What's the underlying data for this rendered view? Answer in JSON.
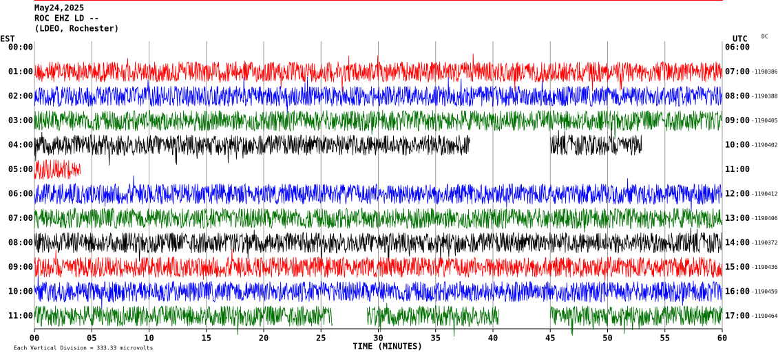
{
  "header": {
    "date": "May24,2025",
    "station": "ROC EHZ LD --",
    "network": "(LDEO, Rochester)",
    "left_zone": "EST",
    "right_zone": "UTC",
    "mode": "DC"
  },
  "axis": {
    "xlim": [
      0,
      60
    ],
    "xticks": [
      {
        "value": 0,
        "label": "00"
      },
      {
        "value": 5,
        "label": "05"
      },
      10,
      15,
      20,
      25,
      30,
      35,
      40,
      45,
      50,
      55,
      60
    ],
    "xlabel": "TIME (MINUTES)",
    "scale_note": "Each Vertical Division =  333.33 microvolts"
  },
  "rows": [
    {
      "est": "00:00",
      "utc": "06:00",
      "count": null,
      "color": null,
      "segments": []
    },
    {
      "est": "01:00",
      "utc": "07:00",
      "count": "-1190386",
      "color": "#ff0000",
      "segments": [
        [
          0,
          60
        ]
      ]
    },
    {
      "est": "02:00",
      "utc": "08:00",
      "count": "-1190388",
      "color": "#0000ff",
      "segments": [
        [
          0,
          60
        ]
      ]
    },
    {
      "est": "03:00",
      "utc": "09:00",
      "count": "-1190405",
      "color": "#007000",
      "segments": [
        [
          0,
          60
        ]
      ]
    },
    {
      "est": "04:00",
      "utc": "10:00",
      "count": "-1190402",
      "color": "#000000",
      "segments": [
        [
          0,
          38
        ],
        [
          45,
          53
        ]
      ]
    },
    {
      "est": "05:00",
      "utc": "11:00",
      "count": null,
      "color": "#ff0000",
      "segments": [
        [
          0,
          4
        ]
      ]
    },
    {
      "est": "06:00",
      "utc": "12:00",
      "count": "-1190412",
      "color": "#0000ff",
      "segments": [
        [
          0,
          60
        ]
      ]
    },
    {
      "est": "07:00",
      "utc": "13:00",
      "count": "-1190406",
      "color": "#007000",
      "segments": [
        [
          0,
          60
        ]
      ]
    },
    {
      "est": "08:00",
      "utc": "14:00",
      "count": "-1190372",
      "color": "#000000",
      "segments": [
        [
          0,
          60
        ]
      ]
    },
    {
      "est": "09:00",
      "utc": "15:00",
      "count": "-1190436",
      "color": "#ff0000",
      "segments": [
        [
          0,
          60
        ]
      ]
    },
    {
      "est": "10:00",
      "utc": "16:00",
      "count": "-1190459",
      "color": "#0000ff",
      "segments": [
        [
          0,
          60
        ]
      ]
    },
    {
      "est": "11:00",
      "utc": "17:00",
      "count": "-1190464",
      "color": "#007000",
      "segments": [
        [
          0,
          26
        ],
        [
          29,
          40.5
        ],
        [
          45,
          60
        ]
      ]
    }
  ]
}
